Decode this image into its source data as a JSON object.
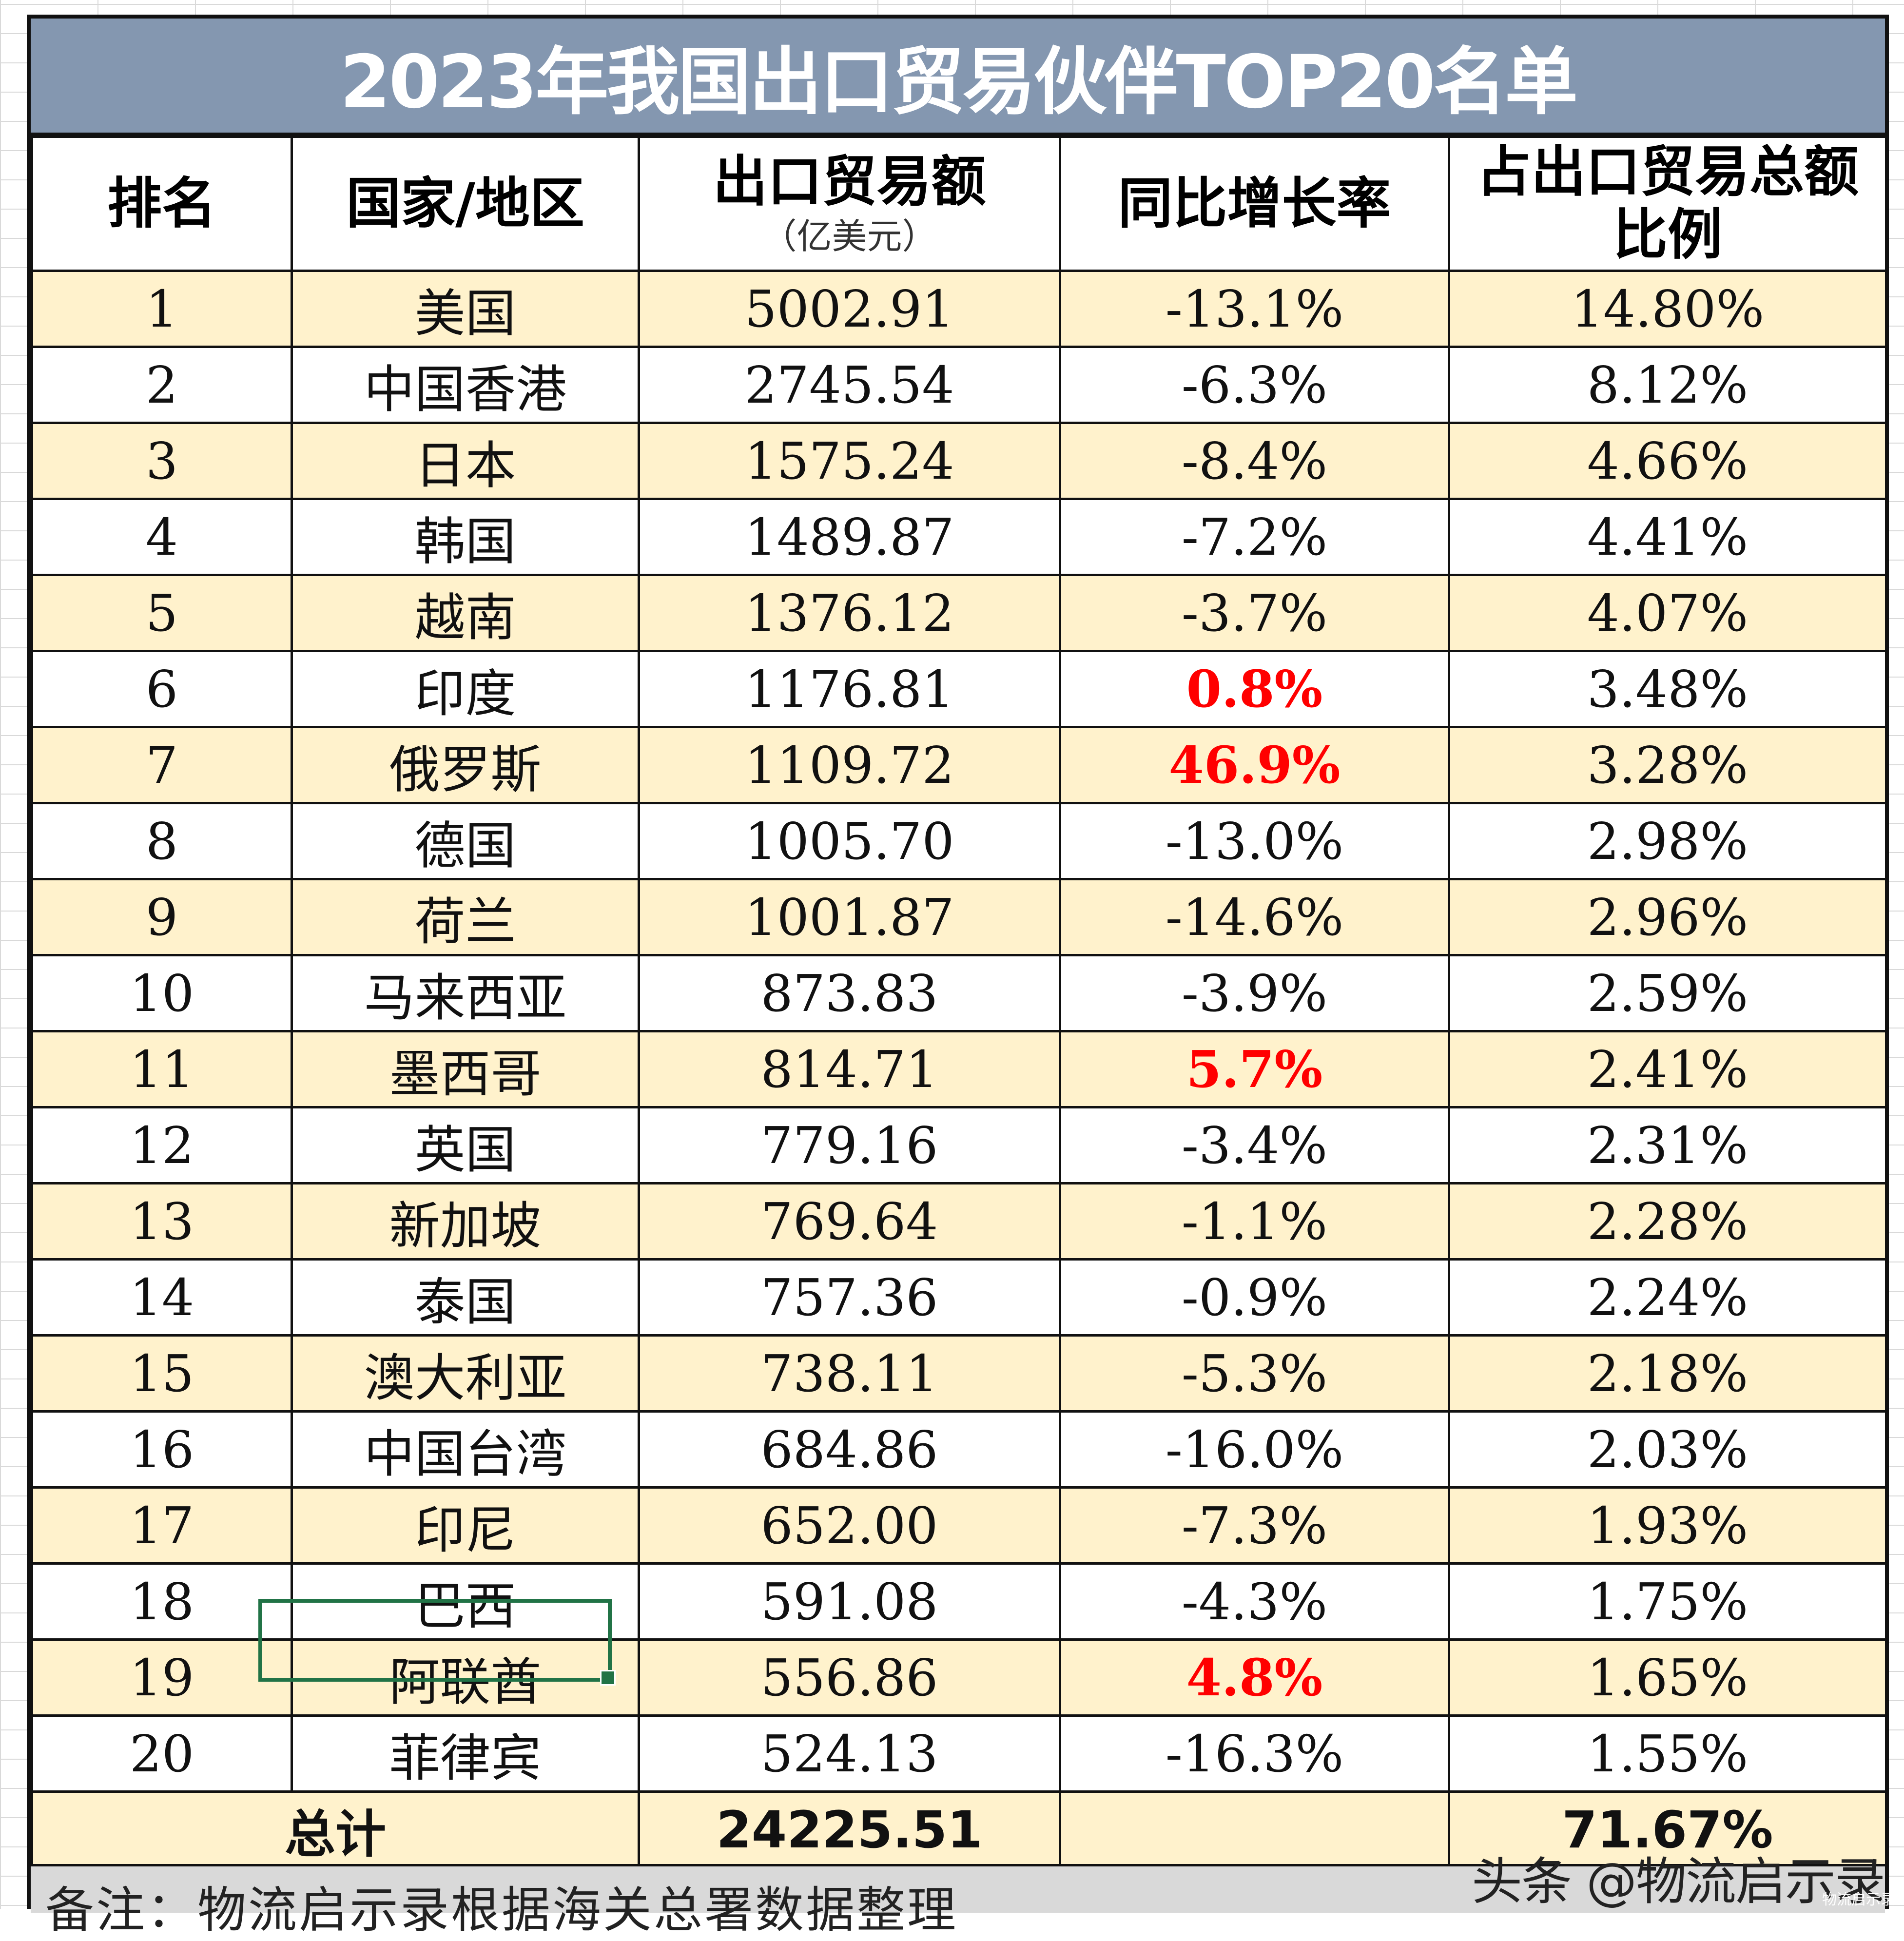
{
  "title": "2023年我国出口贸易伙伴TOP20名单",
  "headers": {
    "rank": "排名",
    "country": "国家/地区",
    "export": "出口贸易额",
    "export_unit": "（亿美元）",
    "growth": "同比增长率",
    "share_line1": "占出口贸易总额",
    "share_line2": "比例"
  },
  "rows": [
    {
      "rank": "1",
      "country": "美国",
      "export": "5002.91",
      "growth": "-13.1%",
      "share": "14.80%",
      "positive": false
    },
    {
      "rank": "2",
      "country": "中国香港",
      "export": "2745.54",
      "growth": "-6.3%",
      "share": "8.12%",
      "positive": false
    },
    {
      "rank": "3",
      "country": "日本",
      "export": "1575.24",
      "growth": "-8.4%",
      "share": "4.66%",
      "positive": false
    },
    {
      "rank": "4",
      "country": "韩国",
      "export": "1489.87",
      "growth": "-7.2%",
      "share": "4.41%",
      "positive": false
    },
    {
      "rank": "5",
      "country": "越南",
      "export": "1376.12",
      "growth": "-3.7%",
      "share": "4.07%",
      "positive": false
    },
    {
      "rank": "6",
      "country": "印度",
      "export": "1176.81",
      "growth": "0.8%",
      "share": "3.48%",
      "positive": true
    },
    {
      "rank": "7",
      "country": "俄罗斯",
      "export": "1109.72",
      "growth": "46.9%",
      "share": "3.28%",
      "positive": true
    },
    {
      "rank": "8",
      "country": "德国",
      "export": "1005.70",
      "growth": "-13.0%",
      "share": "2.98%",
      "positive": false
    },
    {
      "rank": "9",
      "country": "荷兰",
      "export": "1001.87",
      "growth": "-14.6%",
      "share": "2.96%",
      "positive": false
    },
    {
      "rank": "10",
      "country": "马来西亚",
      "export": "873.83",
      "growth": "-3.9%",
      "share": "2.59%",
      "positive": false
    },
    {
      "rank": "11",
      "country": "墨西哥",
      "export": "814.71",
      "growth": "5.7%",
      "share": "2.41%",
      "positive": true
    },
    {
      "rank": "12",
      "country": "英国",
      "export": "779.16",
      "growth": "-3.4%",
      "share": "2.31%",
      "positive": false
    },
    {
      "rank": "13",
      "country": "新加坡",
      "export": "769.64",
      "growth": "-1.1%",
      "share": "2.28%",
      "positive": false
    },
    {
      "rank": "14",
      "country": "泰国",
      "export": "757.36",
      "growth": "-0.9%",
      "share": "2.24%",
      "positive": false
    },
    {
      "rank": "15",
      "country": "澳大利亚",
      "export": "738.11",
      "growth": "-5.3%",
      "share": "2.18%",
      "positive": false
    },
    {
      "rank": "16",
      "country": "中国台湾",
      "export": "684.86",
      "growth": "-16.0%",
      "share": "2.03%",
      "positive": false
    },
    {
      "rank": "17",
      "country": "印尼",
      "export": "652.00",
      "growth": "-7.3%",
      "share": "1.93%",
      "positive": false
    },
    {
      "rank": "18",
      "country": "巴西",
      "export": "591.08",
      "growth": "-4.3%",
      "share": "1.75%",
      "positive": false
    },
    {
      "rank": "19",
      "country": "阿联酋",
      "export": "556.86",
      "growth": "4.8%",
      "share": "1.65%",
      "positive": true
    },
    {
      "rank": "20",
      "country": "菲律宾",
      "export": "524.13",
      "growth": "-16.3%",
      "share": "1.55%",
      "positive": false
    }
  ],
  "total": {
    "label": "总计",
    "export": "24225.51",
    "growth": "",
    "share": "71.67%"
  },
  "note": "备注：物流启示录根据海关总署数据整理",
  "watermark": "头条 @物流启示录",
  "watermark_small": "物流启示录",
  "colors": {
    "title_bg": "#8497b0",
    "band": "#fff2cc",
    "positive": "#ff0000",
    "selection": "#217346"
  }
}
